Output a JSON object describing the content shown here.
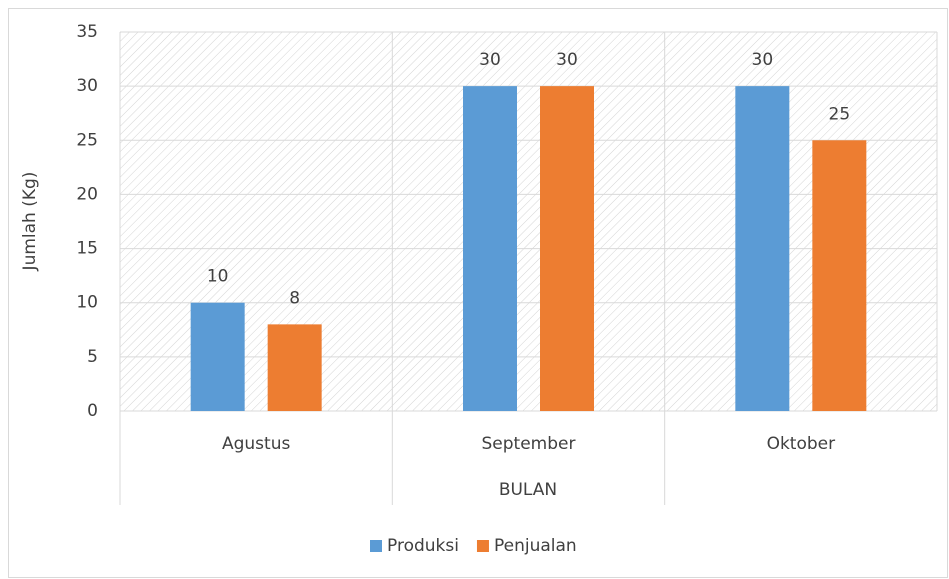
{
  "chart_data": {
    "type": "bar",
    "x_label": "BULAN",
    "y_label": "Jumlah (Kg)",
    "categories": [
      "Agustus",
      "September",
      "Oktober"
    ],
    "series": [
      {
        "name": "Produksi",
        "color": "#5b9bd5",
        "values": [
          10,
          30,
          30
        ]
      },
      {
        "name": "Penjualan",
        "color": "#ed7d31",
        "values": [
          8,
          30,
          25
        ]
      }
    ],
    "ylim": [
      0,
      35
    ],
    "yticks": [
      0,
      5,
      10,
      15,
      20,
      25,
      30,
      35
    ],
    "grid": true,
    "legend": "bottom"
  }
}
